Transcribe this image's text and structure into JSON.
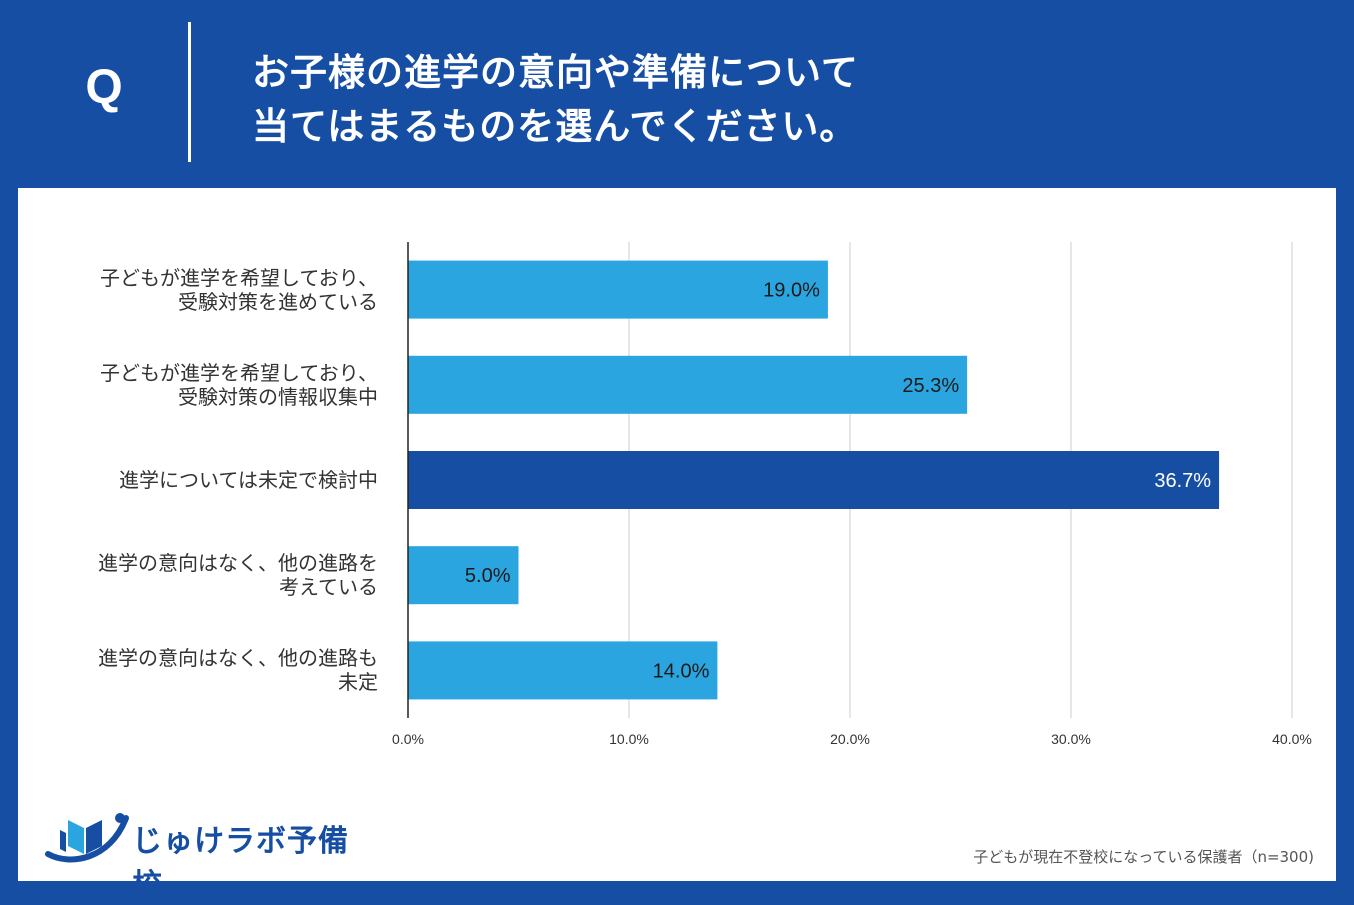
{
  "header": {
    "q_label": "Q",
    "question_line1": "お子様の進学の意向や準備について",
    "question_line2": "当てはまるものを選んでください。"
  },
  "chart_data": {
    "type": "bar",
    "orientation": "horizontal",
    "categories": [
      "子どもが進学を希望しており、\n受験対策を進めている",
      "子どもが進学を希望しており、\n受験対策の情報収集中",
      "進学については未定で検討中",
      "進学の意向はなく、他の進路を\n考えている",
      "進学の意向はなく、他の進路も\n未定"
    ],
    "values": [
      19.0,
      25.3,
      36.7,
      5.0,
      14.0
    ],
    "value_labels": [
      "19.0%",
      "25.3%",
      "36.7%",
      "5.0%",
      "14.0%"
    ],
    "highlight_index": 2,
    "colors": {
      "bar": "#2aa5df",
      "highlight": "#164ea3",
      "grid": "#cccccc",
      "axis": "#222222"
    },
    "xlim": [
      0,
      40
    ],
    "xticks": [
      0,
      10,
      20,
      30,
      40
    ],
    "xtick_labels": [
      "0.0%",
      "10.0%",
      "20.0%",
      "30.0%",
      "40.0%"
    ],
    "grid": true
  },
  "logo": {
    "text": "じゅけラボ予備校"
  },
  "footnote": "子どもが現在不登校になっている保護者（n=300)"
}
